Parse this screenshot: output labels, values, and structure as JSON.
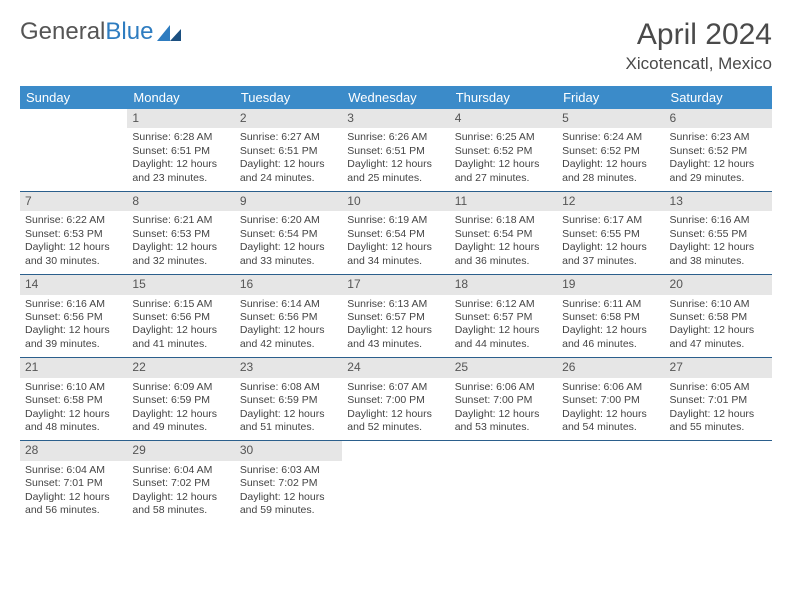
{
  "brand": {
    "part1": "General",
    "part2": "Blue"
  },
  "title": "April 2024",
  "location": "Xicotencatl, Mexico",
  "colors": {
    "header_bg": "#3b8bc9",
    "header_text": "#ffffff",
    "daynum_bg": "#e6e6e6",
    "row_border": "#2b5f8c",
    "text": "#444444",
    "brand_gray": "#555555",
    "brand_blue": "#2e7cc0"
  },
  "columns": [
    "Sunday",
    "Monday",
    "Tuesday",
    "Wednesday",
    "Thursday",
    "Friday",
    "Saturday"
  ],
  "weeks": [
    [
      null,
      {
        "n": "1",
        "sr": "Sunrise: 6:28 AM",
        "ss": "Sunset: 6:51 PM",
        "dl": "Daylight: 12 hours and 23 minutes."
      },
      {
        "n": "2",
        "sr": "Sunrise: 6:27 AM",
        "ss": "Sunset: 6:51 PM",
        "dl": "Daylight: 12 hours and 24 minutes."
      },
      {
        "n": "3",
        "sr": "Sunrise: 6:26 AM",
        "ss": "Sunset: 6:51 PM",
        "dl": "Daylight: 12 hours and 25 minutes."
      },
      {
        "n": "4",
        "sr": "Sunrise: 6:25 AM",
        "ss": "Sunset: 6:52 PM",
        "dl": "Daylight: 12 hours and 27 minutes."
      },
      {
        "n": "5",
        "sr": "Sunrise: 6:24 AM",
        "ss": "Sunset: 6:52 PM",
        "dl": "Daylight: 12 hours and 28 minutes."
      },
      {
        "n": "6",
        "sr": "Sunrise: 6:23 AM",
        "ss": "Sunset: 6:52 PM",
        "dl": "Daylight: 12 hours and 29 minutes."
      }
    ],
    [
      {
        "n": "7",
        "sr": "Sunrise: 6:22 AM",
        "ss": "Sunset: 6:53 PM",
        "dl": "Daylight: 12 hours and 30 minutes."
      },
      {
        "n": "8",
        "sr": "Sunrise: 6:21 AM",
        "ss": "Sunset: 6:53 PM",
        "dl": "Daylight: 12 hours and 32 minutes."
      },
      {
        "n": "9",
        "sr": "Sunrise: 6:20 AM",
        "ss": "Sunset: 6:54 PM",
        "dl": "Daylight: 12 hours and 33 minutes."
      },
      {
        "n": "10",
        "sr": "Sunrise: 6:19 AM",
        "ss": "Sunset: 6:54 PM",
        "dl": "Daylight: 12 hours and 34 minutes."
      },
      {
        "n": "11",
        "sr": "Sunrise: 6:18 AM",
        "ss": "Sunset: 6:54 PM",
        "dl": "Daylight: 12 hours and 36 minutes."
      },
      {
        "n": "12",
        "sr": "Sunrise: 6:17 AM",
        "ss": "Sunset: 6:55 PM",
        "dl": "Daylight: 12 hours and 37 minutes."
      },
      {
        "n": "13",
        "sr": "Sunrise: 6:16 AM",
        "ss": "Sunset: 6:55 PM",
        "dl": "Daylight: 12 hours and 38 minutes."
      }
    ],
    [
      {
        "n": "14",
        "sr": "Sunrise: 6:16 AM",
        "ss": "Sunset: 6:56 PM",
        "dl": "Daylight: 12 hours and 39 minutes."
      },
      {
        "n": "15",
        "sr": "Sunrise: 6:15 AM",
        "ss": "Sunset: 6:56 PM",
        "dl": "Daylight: 12 hours and 41 minutes."
      },
      {
        "n": "16",
        "sr": "Sunrise: 6:14 AM",
        "ss": "Sunset: 6:56 PM",
        "dl": "Daylight: 12 hours and 42 minutes."
      },
      {
        "n": "17",
        "sr": "Sunrise: 6:13 AM",
        "ss": "Sunset: 6:57 PM",
        "dl": "Daylight: 12 hours and 43 minutes."
      },
      {
        "n": "18",
        "sr": "Sunrise: 6:12 AM",
        "ss": "Sunset: 6:57 PM",
        "dl": "Daylight: 12 hours and 44 minutes."
      },
      {
        "n": "19",
        "sr": "Sunrise: 6:11 AM",
        "ss": "Sunset: 6:58 PM",
        "dl": "Daylight: 12 hours and 46 minutes."
      },
      {
        "n": "20",
        "sr": "Sunrise: 6:10 AM",
        "ss": "Sunset: 6:58 PM",
        "dl": "Daylight: 12 hours and 47 minutes."
      }
    ],
    [
      {
        "n": "21",
        "sr": "Sunrise: 6:10 AM",
        "ss": "Sunset: 6:58 PM",
        "dl": "Daylight: 12 hours and 48 minutes."
      },
      {
        "n": "22",
        "sr": "Sunrise: 6:09 AM",
        "ss": "Sunset: 6:59 PM",
        "dl": "Daylight: 12 hours and 49 minutes."
      },
      {
        "n": "23",
        "sr": "Sunrise: 6:08 AM",
        "ss": "Sunset: 6:59 PM",
        "dl": "Daylight: 12 hours and 51 minutes."
      },
      {
        "n": "24",
        "sr": "Sunrise: 6:07 AM",
        "ss": "Sunset: 7:00 PM",
        "dl": "Daylight: 12 hours and 52 minutes."
      },
      {
        "n": "25",
        "sr": "Sunrise: 6:06 AM",
        "ss": "Sunset: 7:00 PM",
        "dl": "Daylight: 12 hours and 53 minutes."
      },
      {
        "n": "26",
        "sr": "Sunrise: 6:06 AM",
        "ss": "Sunset: 7:00 PM",
        "dl": "Daylight: 12 hours and 54 minutes."
      },
      {
        "n": "27",
        "sr": "Sunrise: 6:05 AM",
        "ss": "Sunset: 7:01 PM",
        "dl": "Daylight: 12 hours and 55 minutes."
      }
    ],
    [
      {
        "n": "28",
        "sr": "Sunrise: 6:04 AM",
        "ss": "Sunset: 7:01 PM",
        "dl": "Daylight: 12 hours and 56 minutes."
      },
      {
        "n": "29",
        "sr": "Sunrise: 6:04 AM",
        "ss": "Sunset: 7:02 PM",
        "dl": "Daylight: 12 hours and 58 minutes."
      },
      {
        "n": "30",
        "sr": "Sunrise: 6:03 AM",
        "ss": "Sunset: 7:02 PM",
        "dl": "Daylight: 12 hours and 59 minutes."
      },
      null,
      null,
      null,
      null
    ]
  ]
}
